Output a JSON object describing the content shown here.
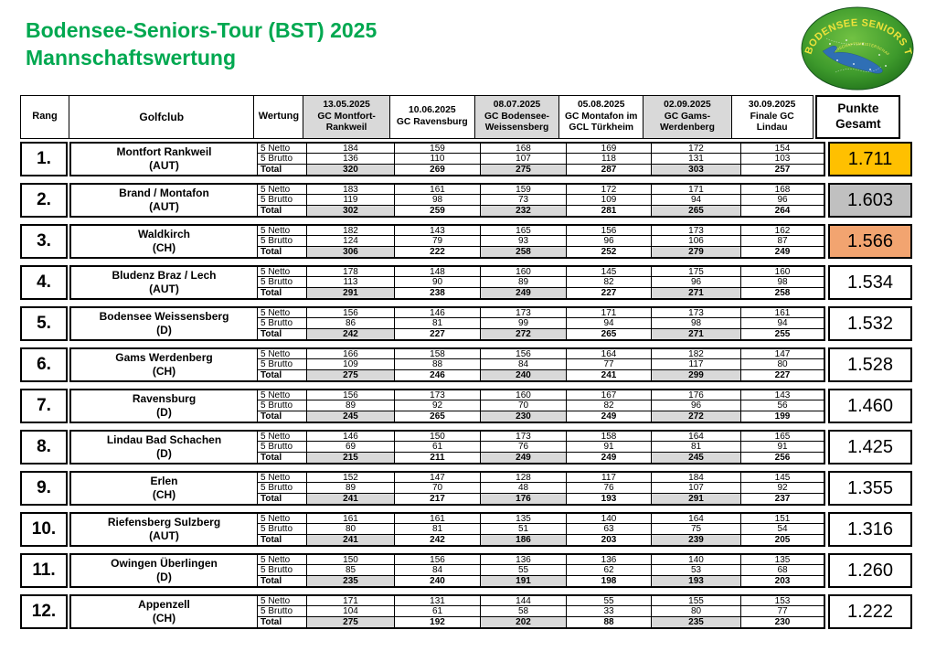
{
  "title_line1": "Bodensee-Seniors-Tour (BST) 2025",
  "title_line2": "Mannschaftswertung",
  "logo": {
    "line1": "BODENSEE SENIORS TOUR",
    "line2": "MANNSCHAFTSMEISTERSCHAFT"
  },
  "header": {
    "rang": "Rang",
    "golfclub": "Golfclub",
    "wertung": "Wertung",
    "events": [
      {
        "date": "13.05.2025",
        "club": "GC Montfort-Rankweil",
        "shaded": true
      },
      {
        "date": "10.06.2025",
        "club": "GC Ravensburg",
        "shaded": false
      },
      {
        "date": "08.07.2025",
        "club": "GC Bodensee-Weissensberg",
        "shaded": true
      },
      {
        "date": "05.08.2025",
        "club": "GC Montafon im GCL Türkheim",
        "shaded": false
      },
      {
        "date": "02.09.2025",
        "club": "GC Gams-Werdenberg",
        "shaded": true
      },
      {
        "date": "30.09.2025",
        "club": "Finale GC Lindau",
        "shaded": false
      }
    ],
    "punkte": "Punkte\nGesamt"
  },
  "row_labels": {
    "netto": "5 Netto",
    "brutto": "5 Brutto",
    "total": "Total"
  },
  "teams": [
    {
      "rank": "1.",
      "club": "Montfort Rankweil",
      "country": "(AUT)",
      "netto": [
        184,
        159,
        168,
        169,
        172,
        154
      ],
      "brutto": [
        136,
        110,
        107,
        118,
        131,
        103
      ],
      "total": [
        320,
        269,
        275,
        287,
        303,
        257
      ],
      "punkte": "1.711",
      "medal": "gold"
    },
    {
      "rank": "2.",
      "club": "Brand / Montafon",
      "country": "(AUT)",
      "netto": [
        183,
        161,
        159,
        172,
        171,
        168
      ],
      "brutto": [
        119,
        98,
        73,
        109,
        94,
        96
      ],
      "total": [
        302,
        259,
        232,
        281,
        265,
        264
      ],
      "punkte": "1.603",
      "medal": "silver"
    },
    {
      "rank": "3.",
      "club": "Waldkirch",
      "country": "(CH)",
      "netto": [
        182,
        143,
        165,
        156,
        173,
        162
      ],
      "brutto": [
        124,
        79,
        93,
        96,
        106,
        87
      ],
      "total": [
        306,
        222,
        258,
        252,
        279,
        249
      ],
      "punkte": "1.566",
      "medal": "bronze"
    },
    {
      "rank": "4.",
      "club": "Bludenz Braz / Lech",
      "country": "(AUT)",
      "netto": [
        178,
        148,
        160,
        145,
        175,
        160
      ],
      "brutto": [
        113,
        90,
        89,
        82,
        96,
        98
      ],
      "total": [
        291,
        238,
        249,
        227,
        271,
        258
      ],
      "punkte": "1.534",
      "medal": null
    },
    {
      "rank": "5.",
      "club": "Bodensee Weissensberg",
      "country": "(D)",
      "netto": [
        156,
        146,
        173,
        171,
        173,
        161
      ],
      "brutto": [
        86,
        81,
        99,
        94,
        98,
        94
      ],
      "total": [
        242,
        227,
        272,
        265,
        271,
        255
      ],
      "punkte": "1.532",
      "medal": null
    },
    {
      "rank": "6.",
      "club": "Gams Werdenberg",
      "country": "(CH)",
      "netto": [
        166,
        158,
        156,
        164,
        182,
        147
      ],
      "brutto": [
        109,
        88,
        84,
        77,
        117,
        80
      ],
      "total": [
        275,
        246,
        240,
        241,
        299,
        227
      ],
      "punkte": "1.528",
      "medal": null
    },
    {
      "rank": "7.",
      "club": "Ravensburg",
      "country": "(D)",
      "netto": [
        156,
        173,
        160,
        167,
        176,
        143
      ],
      "brutto": [
        89,
        92,
        70,
        82,
        96,
        56
      ],
      "total": [
        245,
        265,
        230,
        249,
        272,
        199
      ],
      "punkte": "1.460",
      "medal": null
    },
    {
      "rank": "8.",
      "club": "Lindau Bad Schachen",
      "country": "(D)",
      "netto": [
        146,
        150,
        173,
        158,
        164,
        165
      ],
      "brutto": [
        69,
        61,
        76,
        91,
        81,
        91
      ],
      "total": [
        215,
        211,
        249,
        249,
        245,
        256
      ],
      "punkte": "1.425",
      "medal": null
    },
    {
      "rank": "9.",
      "club": "Erlen",
      "country": "(CH)",
      "netto": [
        152,
        147,
        128,
        117,
        184,
        145
      ],
      "brutto": [
        89,
        70,
        48,
        76,
        107,
        92
      ],
      "total": [
        241,
        217,
        176,
        193,
        291,
        237
      ],
      "punkte": "1.355",
      "medal": null
    },
    {
      "rank": "10.",
      "club": "Riefensberg Sulzberg",
      "country": "(AUT)",
      "netto": [
        161,
        161,
        135,
        140,
        164,
        151
      ],
      "brutto": [
        80,
        81,
        51,
        63,
        75,
        54
      ],
      "total": [
        241,
        242,
        186,
        203,
        239,
        205
      ],
      "punkte": "1.316",
      "medal": null
    },
    {
      "rank": "11.",
      "club": "Owingen Überlingen",
      "country": "(D)",
      "netto": [
        150,
        156,
        136,
        136,
        140,
        135
      ],
      "brutto": [
        85,
        84,
        55,
        62,
        53,
        68
      ],
      "total": [
        235,
        240,
        191,
        198,
        193,
        203
      ],
      "punkte": "1.260",
      "medal": null
    },
    {
      "rank": "12.",
      "club": "Appenzell",
      "country": "(CH)",
      "netto": [
        171,
        131,
        144,
        55,
        155,
        153
      ],
      "brutto": [
        104,
        61,
        58,
        33,
        80,
        77
      ],
      "total": [
        275,
        192,
        202,
        88,
        235,
        230
      ],
      "punkte": "1.222",
      "medal": null
    }
  ],
  "colors": {
    "title_green": "#00A850",
    "shade": "#D9D9D9",
    "gold": "#FFC000",
    "silver": "#C0C0C0",
    "bronze": "#F2A470",
    "logo_green": "#3E9A2C",
    "logo_text_yellow": "#EDE23B",
    "lake_blue": "#2F6FB5"
  }
}
